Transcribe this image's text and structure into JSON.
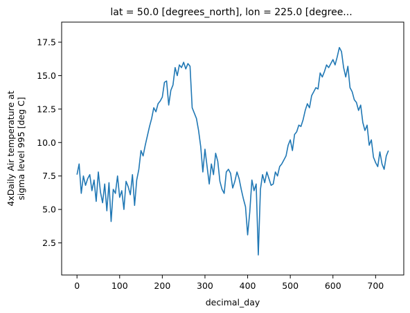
{
  "chart_data": {
    "type": "line",
    "title": "lat = 50.0 [degrees_north], lon = 225.0 [degree...",
    "xlabel": "decimal_day",
    "ylabel_lines": [
      "4xDaily Air temperature at",
      "sigma level 995 [deg C]"
    ],
    "xlim": [
      -36,
      766
    ],
    "ylim": [
      0.1,
      19.0
    ],
    "xticks": [
      0,
      100,
      200,
      300,
      400,
      500,
      600,
      700
    ],
    "yticks": [
      2.5,
      5.0,
      7.5,
      10.0,
      12.5,
      15.0,
      17.5
    ],
    "ytick_labels": [
      "2.5",
      "5.0",
      "7.5",
      "10.0",
      "12.5",
      "15.0",
      "17.5"
    ],
    "grid": false,
    "legend": "none",
    "series": [
      {
        "color": "#1f77b4",
        "x": [
          0,
          5,
          10,
          15,
          20,
          25,
          30,
          35,
          40,
          45,
          50,
          55,
          60,
          65,
          70,
          75,
          80,
          85,
          90,
          95,
          100,
          105,
          110,
          115,
          120,
          125,
          130,
          135,
          140,
          145,
          150,
          155,
          160,
          165,
          170,
          175,
          180,
          185,
          190,
          195,
          200,
          205,
          210,
          215,
          220,
          225,
          230,
          235,
          240,
          245,
          250,
          255,
          260,
          265,
          270,
          275,
          280,
          285,
          290,
          295,
          300,
          305,
          310,
          315,
          320,
          325,
          330,
          335,
          340,
          345,
          350,
          355,
          360,
          365,
          370,
          375,
          380,
          385,
          390,
          395,
          400,
          405,
          410,
          415,
          420,
          425,
          430,
          435,
          440,
          445,
          450,
          455,
          460,
          465,
          470,
          475,
          480,
          485,
          490,
          495,
          500,
          505,
          510,
          515,
          520,
          525,
          530,
          535,
          540,
          545,
          550,
          555,
          560,
          565,
          570,
          575,
          580,
          585,
          590,
          595,
          600,
          605,
          610,
          615,
          620,
          625,
          630,
          635,
          640,
          645,
          650,
          655,
          660,
          665,
          670,
          675,
          680,
          685,
          690,
          695,
          700,
          705,
          710,
          715,
          720,
          725,
          730
        ],
        "y": [
          7.6,
          8.4,
          6.2,
          7.5,
          6.8,
          7.3,
          7.6,
          6.4,
          7.2,
          5.6,
          7.8,
          6.3,
          5.5,
          6.9,
          4.9,
          7.0,
          4.1,
          6.5,
          6.2,
          7.5,
          5.9,
          6.4,
          5.0,
          7.1,
          6.7,
          6.1,
          7.6,
          5.3,
          7.2,
          8.0,
          9.4,
          9.0,
          9.8,
          10.5,
          11.2,
          11.8,
          12.6,
          12.3,
          12.9,
          13.1,
          13.4,
          14.5,
          14.6,
          12.8,
          13.9,
          14.3,
          15.6,
          15.0,
          15.8,
          15.6,
          16.0,
          15.5,
          15.9,
          15.7,
          12.6,
          12.2,
          11.8,
          10.9,
          9.7,
          7.8,
          9.5,
          8.2,
          6.9,
          8.4,
          7.6,
          9.2,
          8.6,
          7.1,
          6.5,
          6.2,
          7.8,
          8.0,
          7.7,
          6.6,
          7.1,
          7.8,
          7.3,
          6.5,
          5.8,
          5.2,
          3.1,
          4.8,
          7.2,
          6.4,
          6.9,
          1.6,
          6.5,
          7.6,
          7.0,
          7.8,
          7.3,
          6.8,
          6.9,
          7.8,
          7.5,
          8.2,
          8.4,
          8.7,
          9.0,
          9.8,
          10.2,
          9.4,
          10.6,
          10.8,
          11.3,
          11.2,
          11.7,
          12.4,
          12.9,
          12.6,
          13.5,
          13.8,
          14.1,
          14.0,
          15.2,
          14.9,
          15.3,
          15.8,
          15.6,
          15.9,
          16.2,
          15.8,
          16.4,
          17.1,
          16.8,
          15.6,
          14.9,
          15.7,
          14.1,
          13.8,
          13.2,
          13.0,
          12.4,
          12.8,
          11.5,
          10.9,
          11.3,
          9.8,
          10.2,
          8.9,
          8.5,
          8.2,
          9.3,
          8.4,
          8.0,
          9.0,
          9.4
        ]
      }
    ]
  }
}
